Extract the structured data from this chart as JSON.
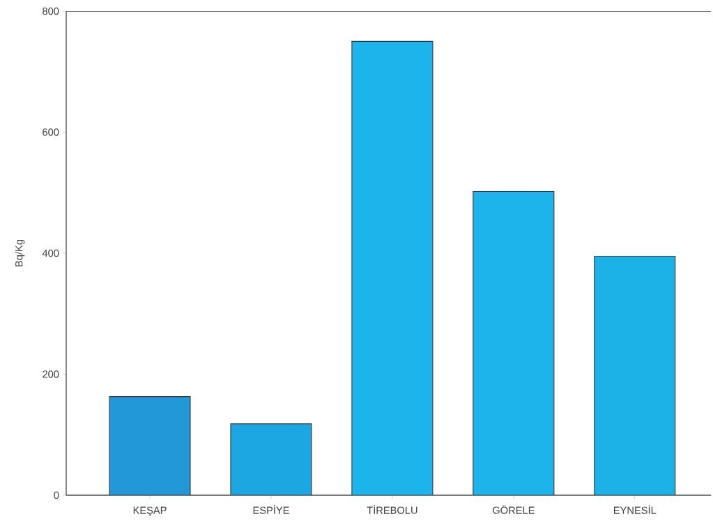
{
  "chart_data": {
    "type": "bar",
    "ylabel": "Bq/Kg",
    "categories": [
      "KEŞAP",
      "ESPİYE",
      "TİREBOLU",
      "GÖRELE",
      "EYNESİL"
    ],
    "values": [
      163,
      118,
      750,
      502,
      395
    ],
    "colors": [
      "#2398d8",
      "#1ca6e2",
      "#1cb4ea",
      "#1cb4ea",
      "#1cb2e8"
    ],
    "ylim": [
      0,
      800
    ],
    "yticks": [
      0,
      200,
      400,
      600,
      800
    ],
    "grid": false
  }
}
